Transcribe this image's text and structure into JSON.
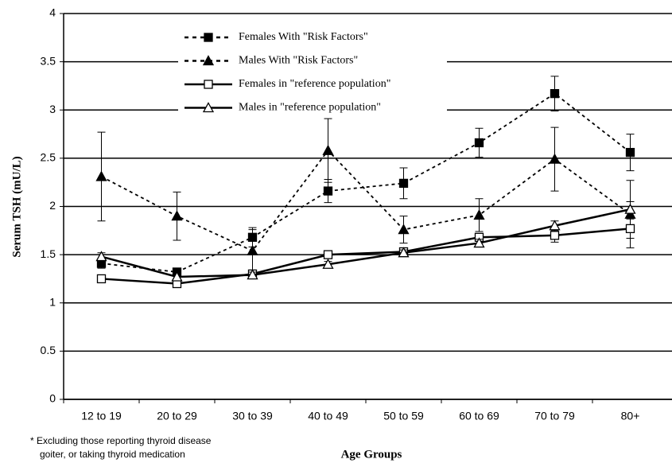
{
  "chart_data": {
    "type": "line",
    "y_label": "Serum TSH (mU/L)",
    "x_label": "Age Groups",
    "footnote": [
      "* Excluding those reporting thyroid disease",
      "goiter, or taking thyroid medication"
    ],
    "categories": [
      "12 to 19",
      "20 to 29",
      "30 to 39",
      "40 to 49",
      "50 to 59",
      "60 to 69",
      "70 to 79",
      "80+"
    ],
    "ylim": [
      0,
      4
    ],
    "yticks": [
      0,
      0.5,
      1,
      1.5,
      2,
      2.5,
      3,
      3.5,
      4
    ],
    "grid": true,
    "legend": "top-left",
    "series": [
      {
        "name": "Females With \"Risk Factors\"",
        "color": "#000000",
        "dashed": true,
        "marker": "square",
        "filled": true,
        "values": [
          1.41,
          1.32,
          1.68,
          2.16,
          2.24,
          2.66,
          3.17,
          2.56
        ],
        "errors": [
          0.05,
          0.04,
          0.1,
          0.12,
          0.16,
          0.15,
          0.18,
          0.19
        ]
      },
      {
        "name": "Males With \"Risk Factors\"",
        "color": "#000000",
        "dashed": true,
        "marker": "triangle",
        "filled": true,
        "values": [
          2.31,
          1.9,
          1.54,
          2.58,
          1.76,
          1.91,
          2.49,
          1.92
        ],
        "errors": [
          0.46,
          0.25,
          0.22,
          0.33,
          0.14,
          0.17,
          0.33,
          0.35
        ]
      },
      {
        "name": "Females in \"reference population\"",
        "color": "#000000",
        "dashed": false,
        "marker": "square",
        "filled": false,
        "values": [
          1.25,
          1.2,
          1.3,
          1.5,
          1.53,
          1.68,
          1.7,
          1.77
        ],
        "errors": [
          0.03,
          0.03,
          0.03,
          0.03,
          0.03,
          0.04,
          0.07,
          0.1
        ]
      },
      {
        "name": "Males in \"reference population\"",
        "color": "#000000",
        "dashed": false,
        "marker": "triangle",
        "filled": false,
        "values": [
          1.48,
          1.27,
          1.29,
          1.4,
          1.52,
          1.62,
          1.8,
          1.97
        ],
        "errors": [
          0.04,
          0.03,
          0.03,
          0.03,
          0.03,
          0.04,
          0.05,
          0.08
        ]
      }
    ]
  }
}
